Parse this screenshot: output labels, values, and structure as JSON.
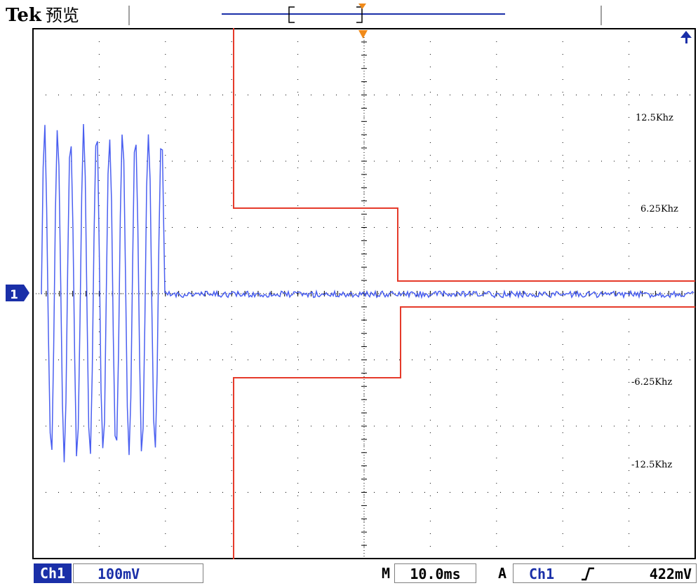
{
  "header": {
    "brand": "Tek",
    "mode": "预览"
  },
  "markers": {
    "channel": "1",
    "trigger_icon": "orange-triangle-icon",
    "level_icon": "blue-up-arrow-icon"
  },
  "annotations": [
    "12.5Khz",
    "6.25Khz",
    "-6.25Khz",
    "-12.5Khz"
  ],
  "status": {
    "channel": "Ch1",
    "volts_per_div": "100mV",
    "timebase_prefix": "M",
    "timebase": "10.0ms",
    "trigger_mode": "A",
    "trigger_source": "Ch1",
    "trigger_edge_icon": "rising-edge-icon",
    "trigger_level": "422mV"
  },
  "colors": {
    "trace": "#4a5ff0",
    "envelope": "#e53a2a",
    "trigger": "#f08a1a",
    "accent": "#1a2fa8"
  }
}
